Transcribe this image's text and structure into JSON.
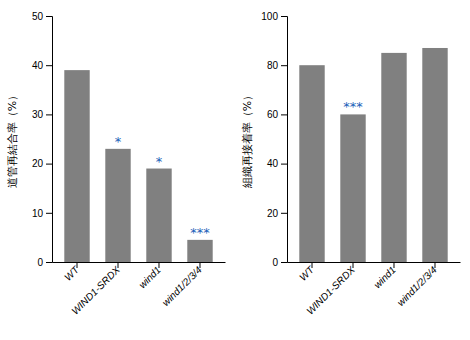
{
  "chart_data": [
    {
      "type": "bar",
      "ylabel": "道管再結合率（%）",
      "categories": [
        "WT",
        "WIND1-SRDX",
        "wind1",
        "wind1/2/3/4"
      ],
      "values": [
        39,
        23,
        19,
        4.5
      ],
      "color": "#808080",
      "ylim": [
        0,
        50
      ],
      "yticks": [
        0,
        10,
        20,
        30,
        40,
        50
      ],
      "annotations": [
        null,
        {
          "text": "*",
          "color": "#1a5eb8"
        },
        {
          "text": "*",
          "color": "#1a5eb8"
        },
        {
          "text": "***",
          "color": "#1a5eb8"
        }
      ]
    },
    {
      "type": "bar",
      "ylabel": "組織再接着率（%）",
      "categories": [
        "WT",
        "WIND1-SRDX",
        "wind1",
        "wind1/2/3/4"
      ],
      "values": [
        80,
        60,
        85,
        87
      ],
      "color": "#808080",
      "ylim": [
        0,
        100
      ],
      "yticks": [
        0,
        20,
        40,
        60,
        80,
        100
      ],
      "annotations": [
        null,
        {
          "text": "***",
          "color": "#1a5eb8"
        },
        null,
        null
      ]
    }
  ]
}
